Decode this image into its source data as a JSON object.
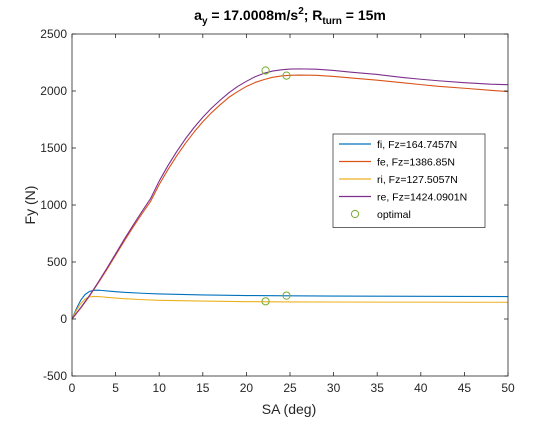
{
  "chart_data": {
    "type": "line",
    "title": {
      "prefix": "a",
      "prefix_sub": "y",
      "mid": " = 17.0008m/s",
      "sup": "2",
      "mid2": "; R",
      "sub": "turn",
      "suffix": " = 15m"
    },
    "xlabel": "SA (deg)",
    "ylabel": "Fy (N)",
    "xlim": [
      0,
      50
    ],
    "ylim": [
      -500,
      2500
    ],
    "xticks": [
      0,
      5,
      10,
      15,
      20,
      25,
      30,
      35,
      40,
      45,
      50
    ],
    "yticks": [
      -500,
      0,
      500,
      1000,
      1500,
      2000,
      2500
    ],
    "grid": false,
    "legend_position": "right",
    "series": [
      {
        "name": "fi, Fz=164.7457N",
        "color": "#0072BD",
        "x": [
          0,
          0.5,
          1,
          1.5,
          2,
          2.5,
          3,
          3.5,
          4,
          5,
          6,
          8,
          10,
          15,
          20,
          25,
          30,
          35,
          40,
          45,
          50
        ],
        "y": [
          0,
          90,
          165,
          215,
          242,
          252,
          253,
          250,
          246,
          240,
          234,
          226,
          220,
          211,
          206,
          203,
          201,
          200,
          199,
          198,
          197
        ]
      },
      {
        "name": "fe, Fz=1386.85N",
        "color": "#D95319",
        "x": [
          0,
          0.5,
          1,
          2,
          3,
          4,
          5,
          6,
          7,
          8,
          9,
          10,
          11,
          12,
          13,
          14,
          15,
          16,
          17,
          18,
          19,
          20,
          21,
          22,
          23,
          24,
          25,
          26,
          28,
          30,
          32,
          35,
          38,
          40,
          42,
          45,
          48,
          50
        ],
        "y": [
          0,
          48,
          95,
          200,
          315,
          435,
          560,
          685,
          805,
          920,
          1030,
          1180,
          1310,
          1430,
          1540,
          1640,
          1730,
          1810,
          1880,
          1945,
          1995,
          2040,
          2075,
          2100,
          2120,
          2132,
          2138,
          2140,
          2138,
          2128,
          2115,
          2095,
          2072,
          2056,
          2041,
          2024,
          2006,
          1995
        ]
      },
      {
        "name": "ri, Fz=127.5057N",
        "color": "#EDB120",
        "x": [
          0,
          0.5,
          1,
          1.5,
          2,
          2.5,
          3,
          3.5,
          4,
          5,
          6,
          8,
          10,
          15,
          20,
          25,
          30,
          35,
          40,
          45,
          50
        ],
        "y": [
          0,
          75,
          135,
          175,
          193,
          198,
          197,
          194,
          190,
          184,
          178,
          170,
          164,
          157,
          152,
          150,
          149,
          148,
          148,
          147,
          147
        ]
      },
      {
        "name": "re, Fz=1424.0901N",
        "color": "#7E2F8E",
        "x": [
          0,
          0.5,
          1,
          2,
          3,
          4,
          5,
          6,
          7,
          8,
          9,
          10,
          11,
          12,
          13,
          14,
          15,
          16,
          17,
          18,
          19,
          20,
          21,
          22,
          23,
          24,
          25,
          26,
          28,
          30,
          32,
          35,
          38,
          40,
          42,
          45,
          48,
          50
        ],
        "y": [
          0,
          50,
          100,
          205,
          322,
          445,
          572,
          700,
          822,
          940,
          1055,
          1210,
          1345,
          1468,
          1580,
          1680,
          1770,
          1850,
          1920,
          1985,
          2040,
          2085,
          2125,
          2155,
          2175,
          2186,
          2192,
          2194,
          2191,
          2180,
          2165,
          2145,
          2118,
          2103,
          2090,
          2073,
          2060,
          2055
        ]
      }
    ],
    "optimal": {
      "name": "optimal",
      "color": "#77AC30",
      "points": [
        {
          "x": 22.2,
          "y": 2180
        },
        {
          "x": 24.6,
          "y": 2135
        },
        {
          "x": 24.6,
          "y": 205
        },
        {
          "x": 22.2,
          "y": 155
        }
      ]
    }
  }
}
